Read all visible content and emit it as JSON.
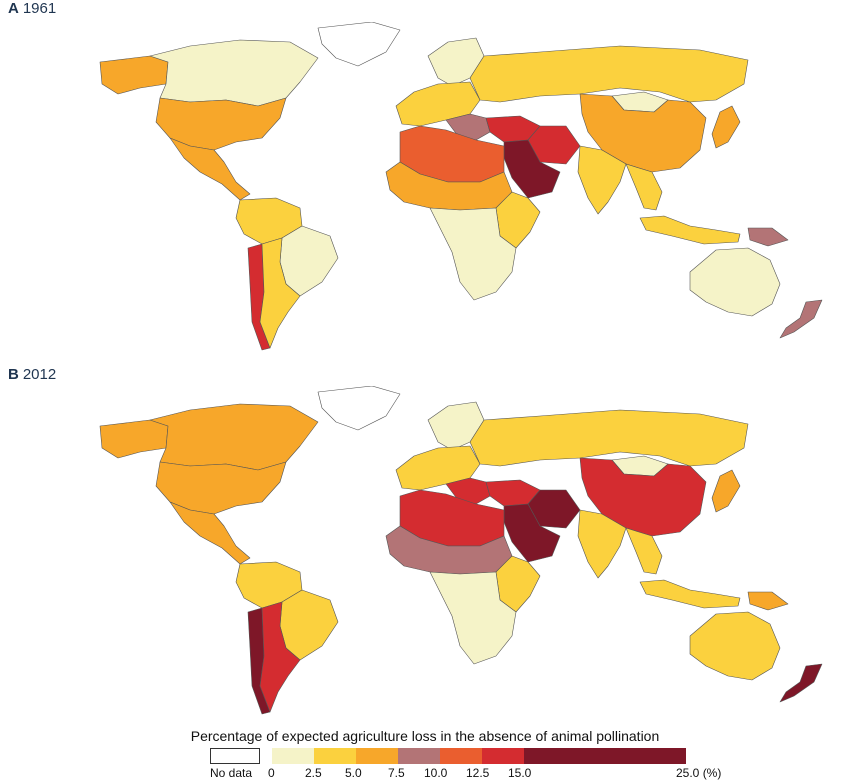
{
  "panels": [
    {
      "letter": "A",
      "year": "1961"
    },
    {
      "letter": "B",
      "year": "2012"
    }
  ],
  "legend": {
    "title": "Percentage of expected agriculture loss in the absence of animal pollination",
    "no_data_label": "No data",
    "ticks": [
      "0",
      "2.5",
      "5.0",
      "7.5",
      "10.0",
      "12.5",
      "15.0",
      "25.0 (%)"
    ],
    "classes": [
      {
        "range": [
          0,
          2.5
        ],
        "color": "#f5f3c8"
      },
      {
        "range": [
          2.5,
          5.0
        ],
        "color": "#fbd13e"
      },
      {
        "range": [
          5.0,
          7.5
        ],
        "color": "#f7a72a"
      },
      {
        "range": [
          7.5,
          10.0
        ],
        "color": "#b37476"
      },
      {
        "range": [
          10.0,
          12.5
        ],
        "color": "#ea5e2f"
      },
      {
        "range": [
          12.5,
          15.0
        ],
        "color": "#d42c30"
      },
      {
        "range": [
          15.0,
          25.0
        ],
        "color": "#7e1728"
      }
    ],
    "no_data_color": "#ffffff"
  },
  "map_data": {
    "1961": {
      "north_america_usa": "5.0-7.5",
      "canada": "0-2.5",
      "alaska": "5.0-7.5",
      "greenland": "no data",
      "mexico_central_america": "5.0-7.5",
      "south_america_north": "2.5-5.0",
      "brazil": "0-2.5",
      "argentina": "2.5-5.0",
      "chile": "12.5-15.0",
      "europe_west": "2.5-5.0",
      "scandinavia": "0-2.5",
      "italy_balkans": "7.5-10.0",
      "russia": "2.5-5.0",
      "turkey_levant": "12.5-15.0",
      "iran_iraq": "12.5-15.0",
      "saudi_arabia": "15.0-25.0",
      "north_africa": "10.0-12.5",
      "sahel": "5.0-7.5",
      "central_southern_africa": "0-2.5",
      "east_africa": "2.5-5.0",
      "china": "5.0-7.5",
      "mongolia": "0-2.5",
      "india": "2.5-5.0",
      "southeast_asia": "2.5-5.0",
      "japan": "5.0-7.5",
      "indonesia": "2.5-5.0",
      "papua": "7.5-10.0",
      "australia": "0-2.5",
      "new_zealand": "7.5-10.0"
    },
    "2012": {
      "north_america_usa": "5.0-7.5",
      "canada": "5.0-7.5",
      "alaska": "5.0-7.5",
      "greenland": "no data",
      "mexico_central_america": "5.0-7.5",
      "south_america_north": "2.5-5.0",
      "brazil": "2.5-5.0",
      "argentina": "12.5-15.0",
      "chile": "15.0-25.0",
      "europe_west": "2.5-5.0",
      "scandinavia": "0-2.5",
      "italy_balkans": "12.5-15.0",
      "russia": "2.5-5.0",
      "turkey_levant": "12.5-15.0",
      "iran_iraq": "15.0-25.0",
      "saudi_arabia": "15.0-25.0",
      "north_africa": "12.5-15.0",
      "sahel": "7.5-10.0",
      "central_southern_africa": "0-2.5",
      "east_africa": "2.5-5.0",
      "china": "12.5-15.0",
      "mongolia": "0-2.5",
      "india": "2.5-5.0",
      "southeast_asia": "2.5-5.0",
      "japan": "5.0-7.5",
      "indonesia": "2.5-5.0",
      "papua": "5.0-7.5",
      "australia": "2.5-5.0",
      "new_zealand": "15.0-25.0"
    }
  }
}
